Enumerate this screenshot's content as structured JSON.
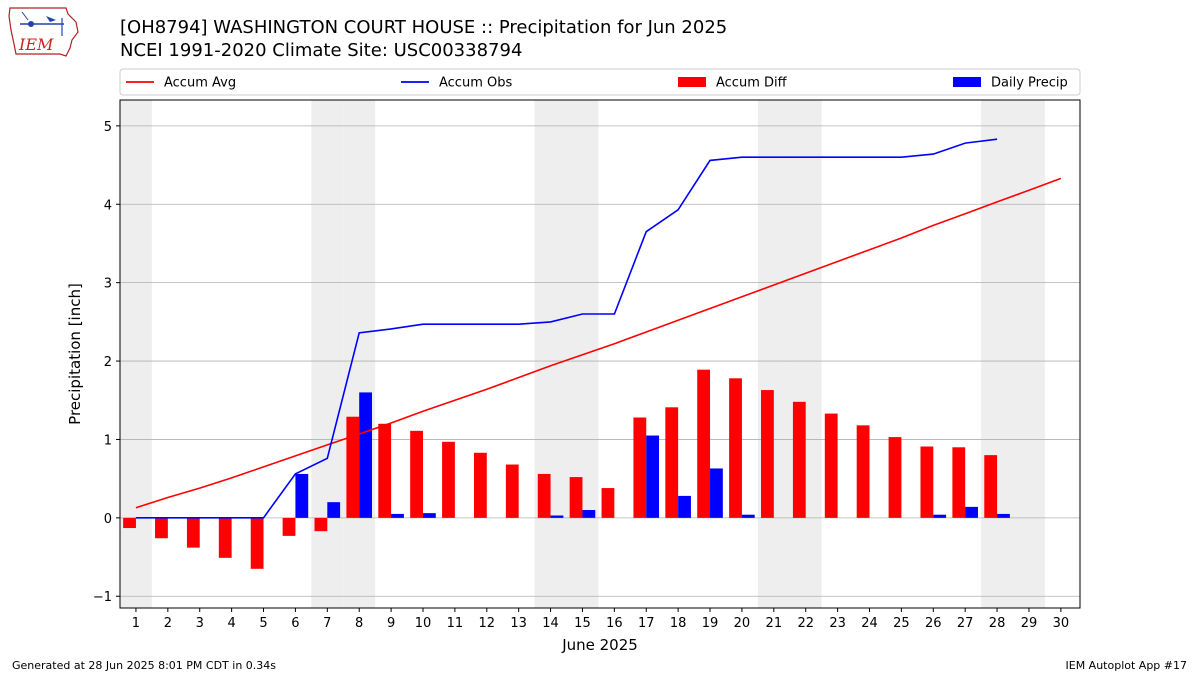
{
  "header": {
    "title_line1": "[OH8794] WASHINGTON COURT HOUSE :: Precipitation for Jun 2025",
    "title_line2": "NCEI 1991-2020 Climate Site: USC00338794",
    "logo_text": "IEM"
  },
  "footer": {
    "generated": "Generated at 28 Jun 2025 8:01 PM CDT in 0.34s",
    "app": "IEM Autoplot App #17"
  },
  "colors": {
    "accum_avg": "#ff0000",
    "accum_obs": "#0000ff",
    "accum_diff": "#ff0000",
    "daily_precip": "#0000ff",
    "weekend_shade": "#eeeeee",
    "grid": "#b0b0b0"
  },
  "chart_data": {
    "type": "bar",
    "xlabel": "June 2025",
    "ylabel": "Precipitation [inch]",
    "ylim": [
      -1.15,
      5.33
    ],
    "yticks": [
      -1,
      0,
      1,
      2,
      3,
      4,
      5
    ],
    "grid": "horizontal",
    "legend_placement": "top, above plot",
    "x": [
      1,
      2,
      3,
      4,
      5,
      6,
      7,
      8,
      9,
      10,
      11,
      12,
      13,
      14,
      15,
      16,
      17,
      18,
      19,
      20,
      21,
      22,
      23,
      24,
      25,
      26,
      27,
      28,
      29,
      30
    ],
    "weekend_days": [
      1,
      7,
      8,
      14,
      15,
      21,
      22,
      28,
      29
    ],
    "series": [
      {
        "name": "Accum Avg",
        "kind": "line",
        "values": [
          0.13,
          0.26,
          0.38,
          0.51,
          0.65,
          0.79,
          0.93,
          1.07,
          1.21,
          1.36,
          1.5,
          1.64,
          1.79,
          1.94,
          2.08,
          2.22,
          2.37,
          2.52,
          2.67,
          2.82,
          2.97,
          3.12,
          3.27,
          3.42,
          3.57,
          3.73,
          3.88,
          4.03,
          4.18,
          4.33
        ]
      },
      {
        "name": "Accum Obs",
        "kind": "line",
        "values": [
          0.0,
          0.0,
          0.0,
          0.0,
          0.0,
          0.56,
          0.76,
          2.36,
          2.41,
          2.47,
          2.47,
          2.47,
          2.47,
          2.5,
          2.6,
          2.6,
          3.65,
          3.93,
          4.56,
          4.6,
          4.6,
          4.6,
          4.6,
          4.6,
          4.6,
          4.64,
          4.78,
          4.83,
          null,
          null
        ]
      },
      {
        "name": "Accum Diff",
        "kind": "bar",
        "values": [
          -0.13,
          -0.26,
          -0.38,
          -0.51,
          -0.65,
          -0.23,
          -0.17,
          1.29,
          1.2,
          1.11,
          0.97,
          0.83,
          0.68,
          0.56,
          0.52,
          0.38,
          1.28,
          1.41,
          1.89,
          1.78,
          1.63,
          1.48,
          1.33,
          1.18,
          1.03,
          0.91,
          0.9,
          0.8,
          null,
          null
        ]
      },
      {
        "name": "Daily Precip",
        "kind": "bar",
        "values": [
          0.0,
          0.0,
          0.0,
          0.0,
          0.0,
          0.56,
          0.2,
          1.6,
          0.05,
          0.06,
          0.0,
          0.0,
          0.0,
          0.03,
          0.1,
          0.0,
          1.05,
          0.28,
          0.63,
          0.04,
          0.0,
          0.0,
          0.0,
          0.0,
          0.0,
          0.04,
          0.14,
          0.05,
          null,
          null
        ]
      }
    ]
  }
}
